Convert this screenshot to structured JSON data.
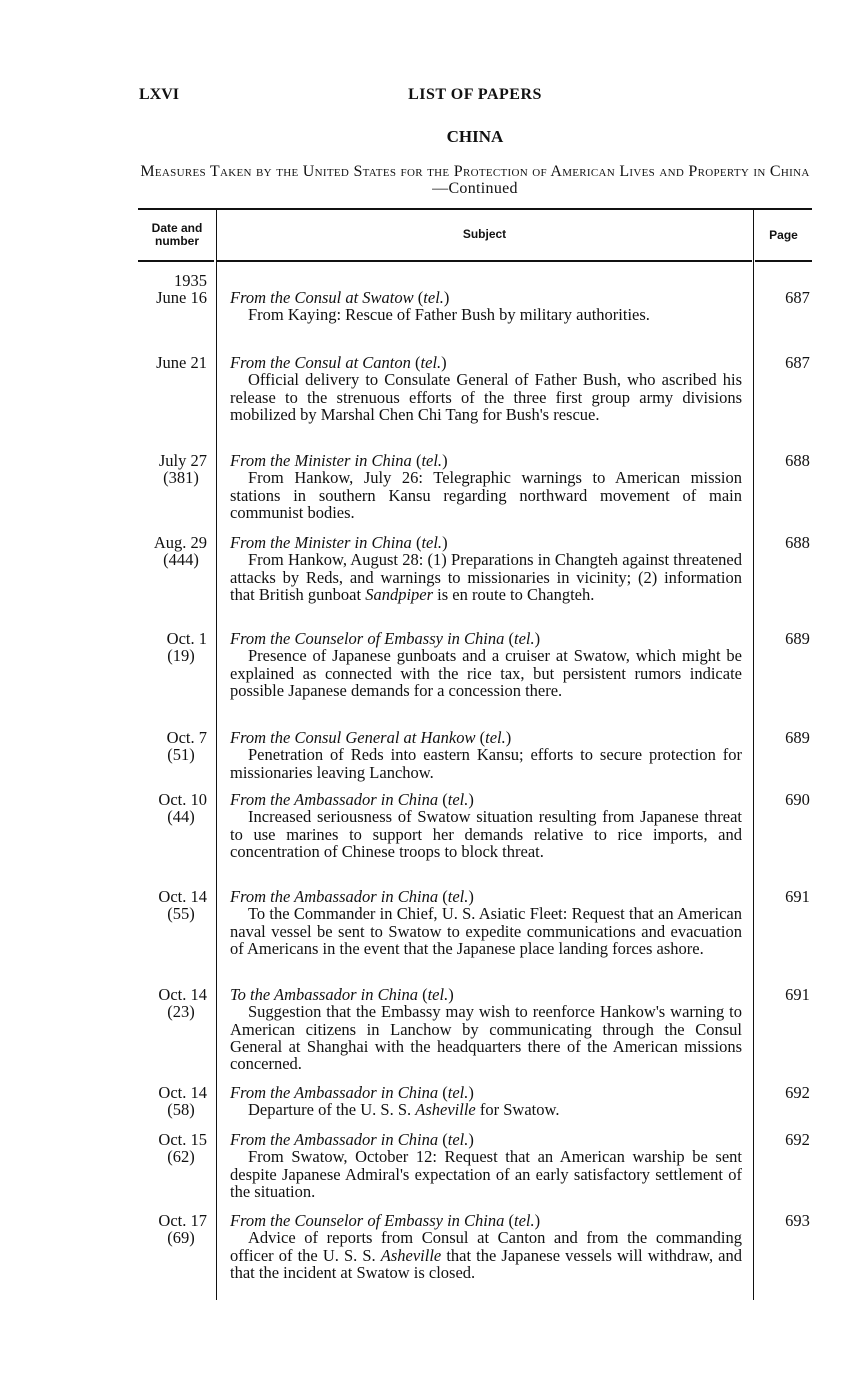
{
  "header": {
    "folio": "LXVI",
    "running_title": "LIST OF PAPERS",
    "section": "CHINA",
    "caption": "Measures Taken by the United States for the Protection of American Lives and Property in China",
    "caption_suffix": "—Continued"
  },
  "table": {
    "columns": [
      "Date and number",
      "Subject",
      "Page"
    ],
    "year": "1935",
    "entries": [
      {
        "date": "June 16",
        "number": "",
        "from": "From the Consul at Swatow",
        "tel": "tel.",
        "body": [
          {
            "t": "From Kaying: Rescue of Father Bush by military authorities."
          }
        ],
        "page": "687"
      },
      {
        "date": "June 21",
        "number": "",
        "from": "From the Consul at Canton",
        "tel": "tel.",
        "body": [
          {
            "t": "Official delivery to Consulate General of Father Bush, who ascribed his release to the strenuous efforts of the three first group army divisions mobilized by Marshal Chen Chi Tang for Bush's rescue."
          }
        ],
        "page": "687"
      },
      {
        "date": "July 27",
        "number": "(381)",
        "from": "From the Minister in China",
        "tel": "tel.",
        "body": [
          {
            "t": "From Hankow, July 26: Telegraphic warnings to American mission stations in southern Kansu regarding northward movement of main communist bodies."
          }
        ],
        "page": "688"
      },
      {
        "date": "Aug. 29",
        "number": "(444)",
        "from": "From the Minister in China",
        "tel": "tel.",
        "body": [
          {
            "t": "From Hankow, August 28: (1) Preparations in Changteh against threatened attacks by Reds, and warnings to missionaries in vicinity; (2) information that British gunboat "
          },
          {
            "t": "Sandpiper",
            "i": true
          },
          {
            "t": " is en route to Changteh."
          }
        ],
        "page": "688"
      },
      {
        "date": "Oct. 1",
        "number": "(19)",
        "from": "From the Counselor of Embassy in China",
        "tel": "tel.",
        "body": [
          {
            "t": "Presence of Japanese gunboats and a cruiser at Swatow, which might be explained as connected with the rice tax, but persistent rumors indicate possible Japanese demands for a concession there."
          }
        ],
        "page": "689"
      },
      {
        "date": "Oct. 7",
        "number": "(51)",
        "from": "From the Consul General at Hankow",
        "tel": "tel.",
        "body": [
          {
            "t": "Penetration of Reds into eastern Kansu; efforts to secure protection for missionaries leaving Lanchow."
          }
        ],
        "page": "689"
      },
      {
        "date": "Oct. 10",
        "number": "(44)",
        "from": "From the Ambassador in China",
        "tel": "tel.",
        "body": [
          {
            "t": "Increased seriousness of Swatow situation resulting from Japanese threat to use marines to support her demands relative to rice imports, and concentration of Chinese troops to block threat."
          }
        ],
        "page": "690"
      },
      {
        "date": "Oct. 14",
        "number": "(55)",
        "from": "From the Ambassador in China",
        "tel": "tel.",
        "body": [
          {
            "t": "To the Commander in Chief, U. S. Asiatic Fleet: Request that an American naval vessel be sent to Swatow to expedite communications and evacuation of Americans in the event that the Japanese place landing forces ashore."
          }
        ],
        "page": "691"
      },
      {
        "date": "Oct. 14",
        "number": "(23)",
        "from": "To the Ambassador in China",
        "tel": "tel.",
        "body": [
          {
            "t": "Suggestion that the Embassy may wish to reenforce Hankow's warning to American citizens in Lanchow by communicating through the Consul General at Shanghai with the headquarters there of the American missions concerned."
          }
        ],
        "page": "691"
      },
      {
        "date": "Oct. 14",
        "number": "(58)",
        "from": "From the Ambassador in China",
        "tel": "tel.",
        "body": [
          {
            "t": "Departure of the U. S. S. "
          },
          {
            "t": "Asheville",
            "i": true
          },
          {
            "t": " for Swatow."
          }
        ],
        "page": "692"
      },
      {
        "date": "Oct. 15",
        "number": "(62)",
        "from": "From the Ambassador in China",
        "tel": "tel.",
        "body": [
          {
            "t": "From Swatow, October 12: Request that an American warship be sent despite Japanese Admiral's expectation of an early satisfactory settlement of the situation."
          }
        ],
        "page": "692"
      },
      {
        "date": "Oct. 17",
        "number": "(69)",
        "from": "From the Counselor of Embassy in China",
        "tel": "tel.",
        "body": [
          {
            "t": "Advice of reports from Consul at Canton and from the commanding officer of the U. S. S. "
          },
          {
            "t": "Asheville",
            "i": true
          },
          {
            "t": " that the Japanese vessels will withdraw, and that the incident at Swatow is closed."
          }
        ],
        "page": "693"
      }
    ]
  }
}
